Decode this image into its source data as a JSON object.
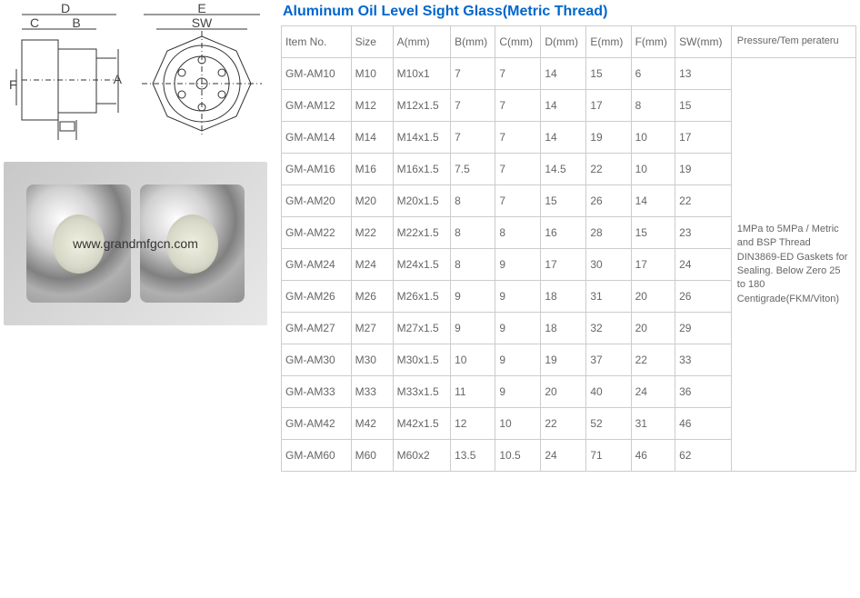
{
  "title": "Aluminum Oil Level Sight Glass(Metric Thread)",
  "watermark": "www.grandmfgcn.com",
  "diagram_labels": {
    "d1": [
      "D",
      "C",
      "B",
      "F",
      "A"
    ],
    "d2": [
      "E",
      "SW"
    ]
  },
  "table": {
    "headers": [
      "Item No.",
      "Size",
      "A(mm)",
      "B(mm)",
      "C(mm)",
      "D(mm)",
      "E(mm)",
      "F(mm)",
      "SW(mm)",
      "Pressure/Tem perateru"
    ],
    "rows": [
      [
        "GM-AM10",
        "M10",
        "M10x1",
        "7",
        "7",
        "14",
        "15",
        "6",
        "13"
      ],
      [
        "GM-AM12",
        "M12",
        "M12x1.5",
        "7",
        "7",
        "14",
        "17",
        "8",
        "15"
      ],
      [
        "GM-AM14",
        "M14",
        "M14x1.5",
        "7",
        "7",
        "14",
        "19",
        "10",
        "17"
      ],
      [
        "GM-AM16",
        "M16",
        "M16x1.5",
        "7.5",
        "7",
        "14.5",
        "22",
        "10",
        "19"
      ],
      [
        "GM-AM20",
        "M20",
        "M20x1.5",
        "8",
        "7",
        "15",
        "26",
        "14",
        "22"
      ],
      [
        "GM-AM22",
        "M22",
        "M22x1.5",
        "8",
        "8",
        "16",
        "28",
        "15",
        "23"
      ],
      [
        "GM-AM24",
        "M24",
        "M24x1.5",
        "8",
        "9",
        "17",
        "30",
        "17",
        "24"
      ],
      [
        "GM-AM26",
        "M26",
        "M26x1.5",
        "9",
        "9",
        "18",
        "31",
        "20",
        "26"
      ],
      [
        "GM-AM27",
        "M27",
        "M27x1.5",
        "9",
        "9",
        "18",
        "32",
        "20",
        "29"
      ],
      [
        "GM-AM30",
        "M30",
        "M30x1.5",
        "10",
        "9",
        "19",
        "37",
        "22",
        "33"
      ],
      [
        "GM-AM33",
        "M33",
        "M33x1.5",
        "11",
        "9",
        "20",
        "40",
        "24",
        "36"
      ],
      [
        "GM-AM42",
        "M42",
        "M42x1.5",
        "12",
        "10",
        "22",
        "52",
        "31",
        "46"
      ],
      [
        "GM-AM60",
        "M60",
        "M60x2",
        "13.5",
        "10.5",
        "24",
        "71",
        "46",
        "62"
      ]
    ],
    "pressure_note": "1MPa to 5MPa  / Metric and BSP Thread DIN3869-ED Gaskets for Sealing. Below Zero 25 to 180 Centigrade(FKM/Viton)"
  },
  "col_widths": [
    "70",
    "42",
    "58",
    "42",
    "42",
    "42",
    "42",
    "42",
    "50",
    "90"
  ]
}
